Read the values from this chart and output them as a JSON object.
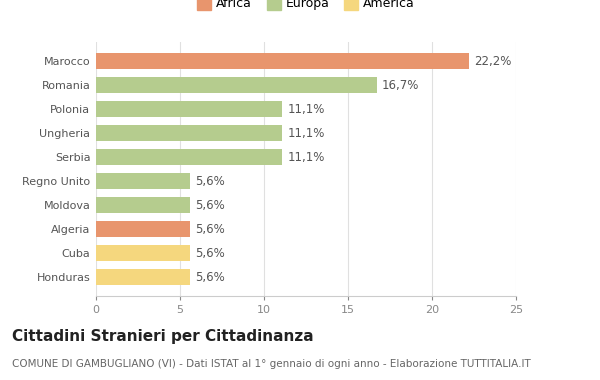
{
  "categories": [
    "Honduras",
    "Cuba",
    "Algeria",
    "Moldova",
    "Regno Unito",
    "Serbia",
    "Ungheria",
    "Polonia",
    "Romania",
    "Marocco"
  ],
  "values": [
    5.6,
    5.6,
    5.6,
    5.6,
    5.6,
    11.1,
    11.1,
    11.1,
    16.7,
    22.2
  ],
  "labels": [
    "5,6%",
    "5,6%",
    "5,6%",
    "5,6%",
    "5,6%",
    "11,1%",
    "11,1%",
    "11,1%",
    "16,7%",
    "22,2%"
  ],
  "colors": [
    "#f5d77e",
    "#f5d77e",
    "#e8956d",
    "#b5cc8e",
    "#b5cc8e",
    "#b5cc8e",
    "#b5cc8e",
    "#b5cc8e",
    "#b5cc8e",
    "#e8956d"
  ],
  "legend_labels": [
    "Africa",
    "Europa",
    "America"
  ],
  "legend_colors": [
    "#e8956d",
    "#b5cc8e",
    "#f5d77e"
  ],
  "title": "Cittadini Stranieri per Cittadinanza",
  "subtitle": "COMUNE DI GAMBUGLIANO (VI) - Dati ISTAT al 1° gennaio di ogni anno - Elaborazione TUTTITALIA.IT",
  "xlim": [
    0,
    25
  ],
  "xticks": [
    0,
    5,
    10,
    15,
    20,
    25
  ],
  "bg_color": "#ffffff",
  "bar_height": 0.65,
  "label_fontsize": 8.5,
  "title_fontsize": 11,
  "subtitle_fontsize": 7.5,
  "tick_fontsize": 8,
  "ytick_fontsize": 8
}
